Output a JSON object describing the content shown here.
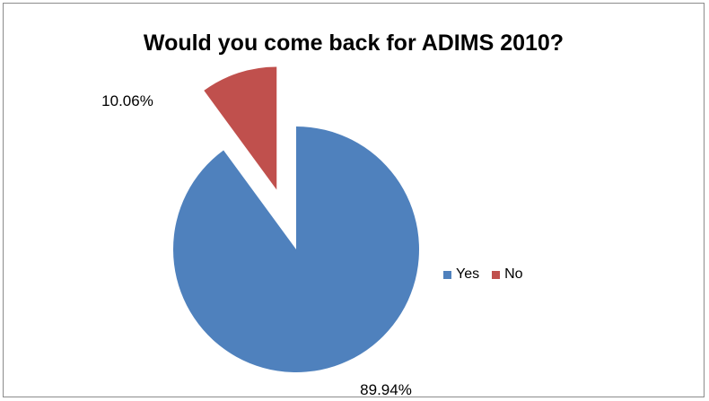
{
  "chart_data": {
    "type": "pie",
    "title": "Would you come back for ADIMS 2010?",
    "series": [
      {
        "name": "Yes",
        "value": 89.94,
        "label": "89.94%",
        "color": "#4f81bd",
        "exploded": false
      },
      {
        "name": "No",
        "value": 10.06,
        "label": "10.06%",
        "color": "#c0504d",
        "exploded": true
      }
    ],
    "start_angle_deg": 0,
    "direction": "clockwise",
    "legend": "right"
  }
}
